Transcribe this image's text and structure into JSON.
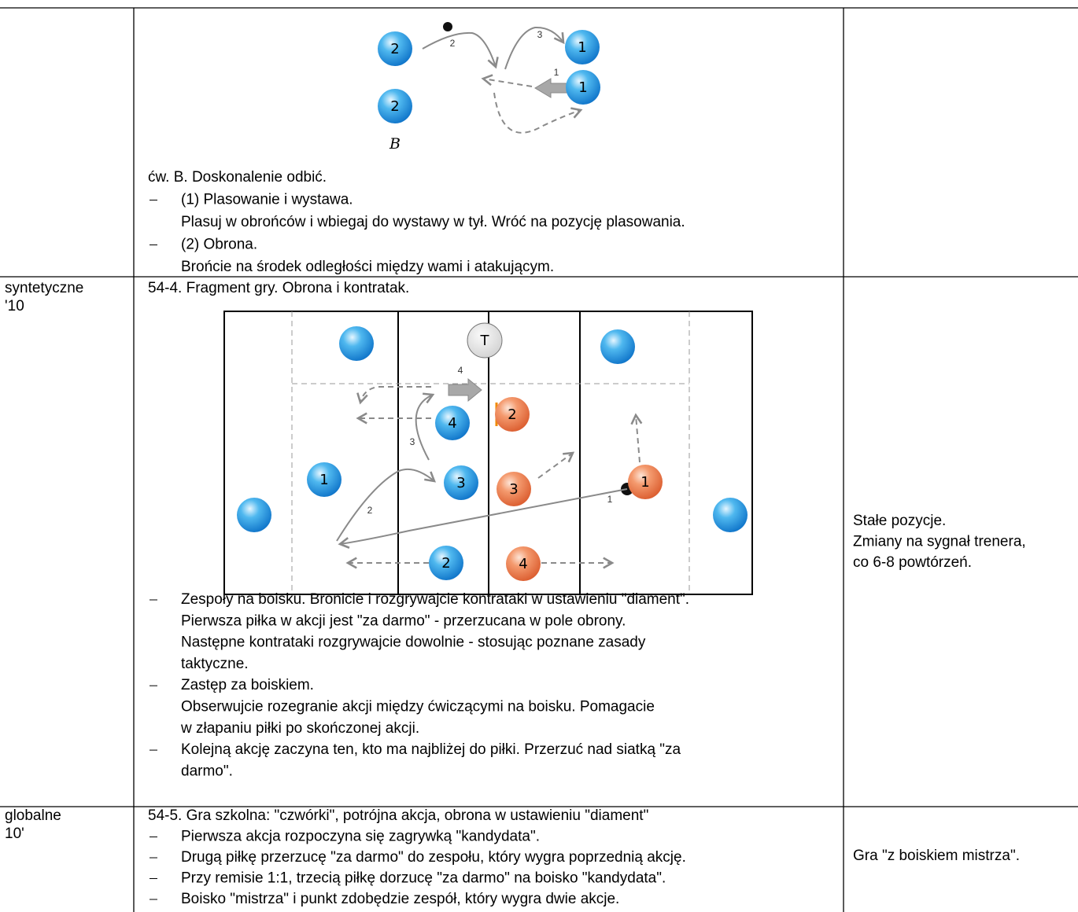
{
  "table": {
    "rows": [
      {
        "diagram": {
          "balls": [
            "2",
            "2",
            "1",
            "1"
          ],
          "letter": "B",
          "arrow_labels": [
            "2",
            "3",
            "1"
          ]
        },
        "exercise": {
          "title": "ćw. B. Doskonalenie odbić.",
          "items": [
            [
              "(1) Plasowanie i wystawa.",
              "Plasuj w obrońców i wbiegaj do wystawy w tył. Wróć na pozycję plasowania."
            ],
            [
              "(2) Obrona.",
              "Brońcie na środek odległości między wami i atakującym."
            ]
          ]
        }
      },
      {
        "stage": [
          "syntetyczne",
          "'10"
        ],
        "exercise": {
          "title": "54-4. Fragment gry. Obrona i kontratak.",
          "items": [
            [
              "Zespoły na boisku. Bronicie i rozgrywajcie kontrataki w ustawieniu \"diament\".",
              "Pierwsza piłka w akcji jest \"za darmo\" - przerzucana w pole obrony.",
              "Następne kontrataki rozgrywajcie dowolnie - stosując poznane zasady",
              "taktyczne."
            ],
            [
              "Zastęp za boiskiem.",
              "Obserwujcie rozegranie akcji między ćwiczącymi na boisku. Pomagacie",
              "w złapaniu piłki po skończonej akcji."
            ],
            [
              "Kolejną akcję zaczyna ten, kto ma najbliżej do piłki. Przerzuć nad siatką \"za",
              "darmo\"."
            ]
          ]
        },
        "diagram": {
          "coach": "T",
          "blue": [
            "4",
            "1",
            "3",
            "2"
          ],
          "orange": [
            "2",
            "3",
            "1",
            "4"
          ],
          "arrow_labels": [
            "4",
            "3",
            "2",
            "1"
          ]
        },
        "note": [
          "Stałe pozycje.",
          "Zmiany na sygnał trenera,",
          "co 6-8 powtórzeń."
        ]
      },
      {
        "stage": [
          "globalne",
          "10'"
        ],
        "exercise": {
          "title": "54-5. Gra szkolna: \"czwórki\", potrójna akcja, obrona w ustawieniu \"diament\"",
          "items": [
            [
              "Pierwsza akcja rozpoczyna się zagrywką \"kandydata\"."
            ],
            [
              "Drugą piłkę przerzucę \"za darmo\" do zespołu, który wygra poprzednią akcję."
            ],
            [
              "Przy remisie 1:1, trzecią piłkę dorzucę \"za darmo\" na boisko \"kandydata\"."
            ],
            [
              "Boisko \"mistrza\" i punkt zdobędzie zespół, który wygra dwie akcje."
            ]
          ]
        },
        "note": [
          "Gra \"z boiskiem mistrza\"."
        ]
      }
    ]
  }
}
